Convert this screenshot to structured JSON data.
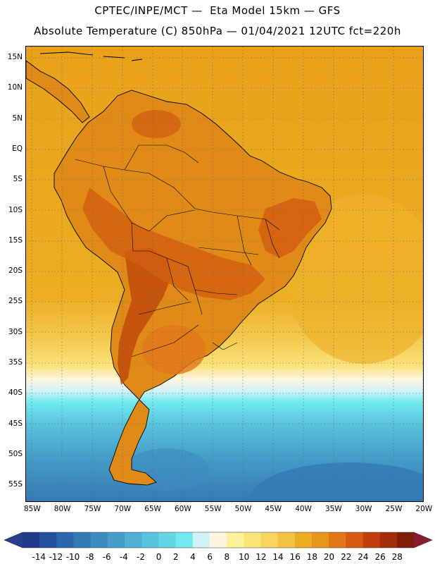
{
  "header": {
    "line1": "CPTEC/INPE/MCT —  Eta Model 15km — GFS",
    "line2": "Absolute Temperature (C) 850hPa — 01/04/2021 12UTC fct=220h"
  },
  "map": {
    "lat_labels": [
      "15N",
      "10N",
      "5N",
      "EQ",
      "5S",
      "10S",
      "15S",
      "20S",
      "25S",
      "30S",
      "35S",
      "40S",
      "45S",
      "50S",
      "55S"
    ],
    "lon_labels": [
      "85W",
      "80W",
      "75W",
      "70W",
      "65W",
      "60W",
      "55W",
      "50W",
      "45W",
      "40W",
      "35W",
      "30W",
      "25W",
      "20W"
    ],
    "colors": {
      "ocean_warm": "#e9a11a",
      "land_base": "#e08b18",
      "land_hot": "#d25e10",
      "land_hotter": "#c04a0b",
      "coast": "#000000",
      "grid": "#666666"
    }
  },
  "colorbar": {
    "labels": [
      "-14",
      "-12",
      "-10",
      "-8",
      "-6",
      "-4",
      "-2",
      "0",
      "2",
      "4",
      "6",
      "8",
      "10",
      "12",
      "14",
      "16",
      "18",
      "20",
      "22",
      "24",
      "26",
      "28"
    ],
    "colors": [
      "#1f3c8c",
      "#24509c",
      "#2c67ac",
      "#3579b4",
      "#3d8cbf",
      "#459ec8",
      "#4fb0d2",
      "#58c2dc",
      "#64d5e5",
      "#70eaef",
      "#d2f2fa",
      "#fdf5df",
      "#fdf29a",
      "#fbe57b",
      "#f7d55f",
      "#f1c444",
      "#ebad25",
      "#e7951d",
      "#e2771a",
      "#d65a12",
      "#c03f0b",
      "#a12d09",
      "#7e1e0a"
    ],
    "low_arrow_color": "#263f8c",
    "high_arrow_color": "#8a1a2e"
  }
}
